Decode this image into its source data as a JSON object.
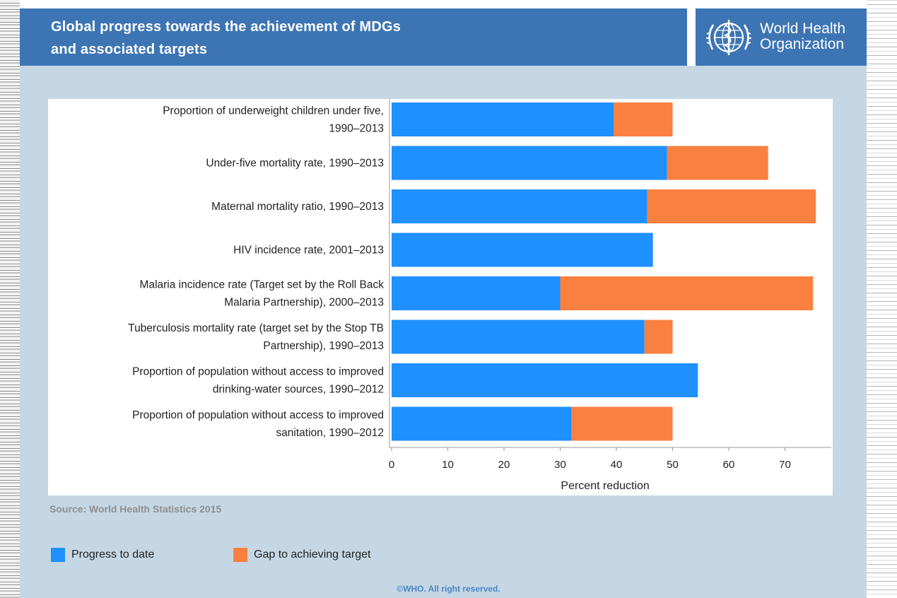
{
  "header": {
    "title_line1": "Global progress towards the achievement of MDGs",
    "title_line2": "and associated targets",
    "org_line1": "World Health",
    "org_line2": "Organization",
    "logo_icon": "who-emblem-icon"
  },
  "colors": {
    "header_bg": "#3d75b4",
    "panel_bg": "#c5d7e4",
    "progress": "#1e90ff",
    "gap": "#fa8040"
  },
  "chart_data": {
    "type": "bar",
    "orientation": "horizontal",
    "stacked": true,
    "categories": [
      [
        "Proportion of underweight children under five,",
        "1990–2013"
      ],
      [
        "Under-five mortality rate, 1990–2013"
      ],
      [
        "Maternal mortality ratio, 1990–2013"
      ],
      [
        "HIV incidence rate, 2001–2013"
      ],
      [
        "Malaria incidence rate (Target set by the Roll Back",
        "Malaria Partnership), 2000–2013"
      ],
      [
        "Tuberculosis mortality rate (target set by the Stop TB",
        "Partnership), 1990–2013"
      ],
      [
        "Proportion of population without access to improved",
        "drinking-water sources, 1990–2012"
      ],
      [
        "Proportion of population without access to improved",
        "sanitation, 1990–2012"
      ]
    ],
    "series": [
      {
        "name": "Progress to date",
        "values": [
          39.5,
          49,
          45.5,
          46.5,
          30,
          45,
          54.5,
          32
        ]
      },
      {
        "name": "Gap to achieving target",
        "values": [
          10.5,
          18,
          30,
          0,
          45,
          5,
          0,
          18
        ]
      }
    ],
    "xticks": [
      0,
      10,
      20,
      30,
      40,
      50,
      60,
      70
    ],
    "xlim": [
      0,
      77
    ],
    "xlabel": "Percent reduction",
    "grid": false,
    "legend_position": "bottom-left"
  },
  "footer": {
    "source": "Source: World Health Statistics 2015",
    "copyright": "©WHO. All right reserved."
  }
}
